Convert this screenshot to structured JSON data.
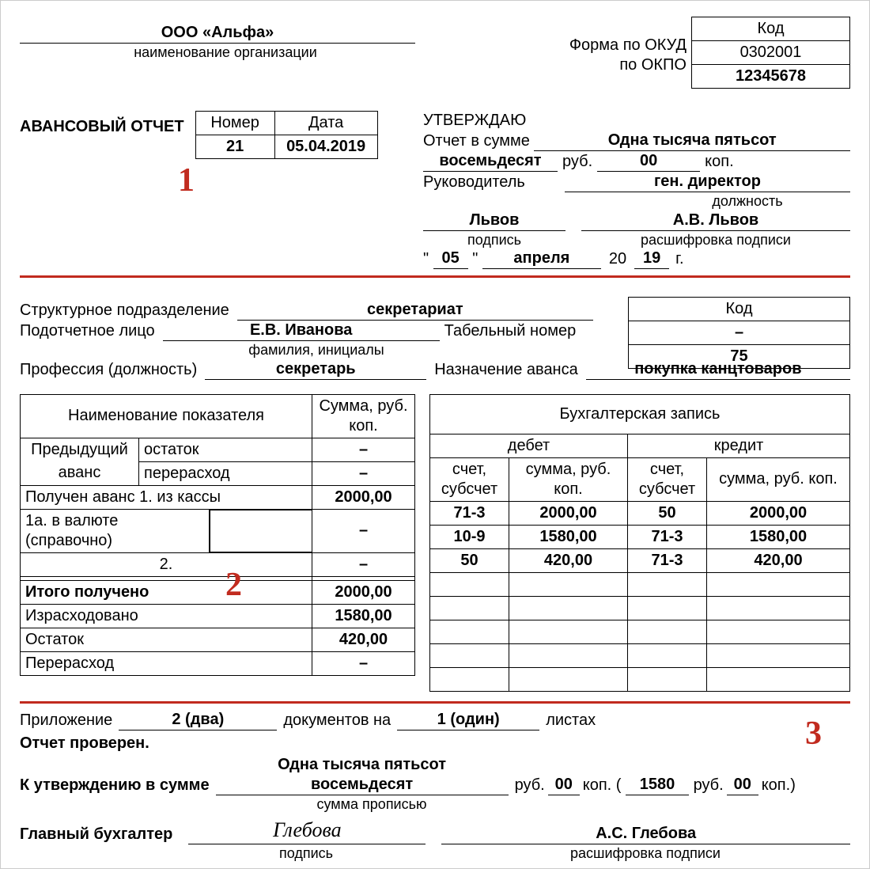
{
  "header": {
    "org_name": "ООО «Альфа»",
    "org_sub": "наименование организации",
    "okud_label": "Форма по ОКУД",
    "okpo_label": "по ОКПО",
    "kod_label": "Код",
    "okud": "0302001",
    "okpo": "12345678"
  },
  "report": {
    "title": "АВАНСОВЫЙ ОТЧЕТ",
    "number_label": "Номер",
    "date_label": "Дата",
    "number": "21",
    "date": "05.04.2019"
  },
  "approve": {
    "title": "УТВЕРЖДАЮ",
    "sum_label": "Отчет в сумме",
    "sum_words": "Одна тысяча пятьсот",
    "sum_words2": "восемьдесят",
    "rub_label": "руб.",
    "kop": "00",
    "kop_label": "коп.",
    "head_label": "Руководитель",
    "position": "ген. директор",
    "position_sub": "должность",
    "sign": "Львов",
    "sign_sub": "подпись",
    "name": "А.В. Львов",
    "name_sub": "расшифровка подписи",
    "d": "05",
    "month": "апреля",
    "yy_prefix": "20",
    "yy": "19",
    "yy_suffix": "г."
  },
  "person": {
    "dept_label": "Структурное подразделение",
    "dept": "секретариат",
    "kod_label": "Код",
    "kod": "–",
    "person_label": "Подотчетное лицо",
    "person": "Е.В. Иванова",
    "person_sub": "фамилия, инициалы",
    "tab_label": "Табельный номер",
    "tab": "75",
    "prof_label": "Профессия (должность)",
    "prof": "секретарь",
    "purpose_label": "Назначение аванса",
    "purpose": "покупка канцтоваров"
  },
  "left_table": {
    "h1": "Наименование показателя",
    "h2": "Сумма, руб. коп.",
    "r1a": "Предыдущий",
    "r1b": "остаток",
    "r1v": "–",
    "r2a": "аванс",
    "r2b": "перерасход",
    "r2v": "–",
    "r3": "Получен аванс 1. из кассы",
    "r3v": "2000,00",
    "r4": "1а. в валюте (справочно)",
    "r4v": "–",
    "r5": "2.",
    "r5v": "–",
    "r6": "",
    "r6v": "",
    "r7": "Итого получено",
    "r7v": "2000,00",
    "r8": "Израсходовано",
    "r8v": "1580,00",
    "r9": "Остаток",
    "r9v": "420,00",
    "r10": "Перерасход",
    "r10v": "–"
  },
  "right_table": {
    "title": "Бухгалтерская запись",
    "debit": "дебет",
    "credit": "кредит",
    "acc": "счет, субсчет",
    "sum": "сумма, руб. коп.",
    "rows": [
      {
        "da": "71-3",
        "ds": "2000,00",
        "ca": "50",
        "cs": "2000,00"
      },
      {
        "da": "10-9",
        "ds": "1580,00",
        "ca": "71-3",
        "cs": "1580,00"
      },
      {
        "da": "50",
        "ds": "420,00",
        "ca": "71-3",
        "cs": "420,00"
      },
      {
        "da": "",
        "ds": "",
        "ca": "",
        "cs": ""
      },
      {
        "da": "",
        "ds": "",
        "ca": "",
        "cs": ""
      },
      {
        "da": "",
        "ds": "",
        "ca": "",
        "cs": ""
      },
      {
        "da": "",
        "ds": "",
        "ca": "",
        "cs": ""
      },
      {
        "da": "",
        "ds": "",
        "ca": "",
        "cs": ""
      }
    ]
  },
  "footer": {
    "attach_label": "Приложение",
    "attach_count": "2 (два)",
    "docs_label": "документов на",
    "sheets": "1 (один)",
    "sheets_label": "листах",
    "checked": "Отчет проверен.",
    "appr_label": "К утверждению в сумме",
    "sum_words1": "Одна тысяча пятьсот",
    "sum_words2": "восемьдесят",
    "sum_sub": "сумма прописью",
    "rub_label": "руб.",
    "kop1": "00",
    "kop_label": "коп.",
    "paren_rub": "1580",
    "paren_kop": "00",
    "acc_label": "Главный бухгалтер",
    "acc_sign": "Глебова",
    "acc_sign_sub": "подпись",
    "acc_name": "А.С. Глебова",
    "acc_name_sub": "расшифровка подписи"
  },
  "marks": {
    "m1": "1",
    "m2": "2",
    "m3": "3"
  }
}
